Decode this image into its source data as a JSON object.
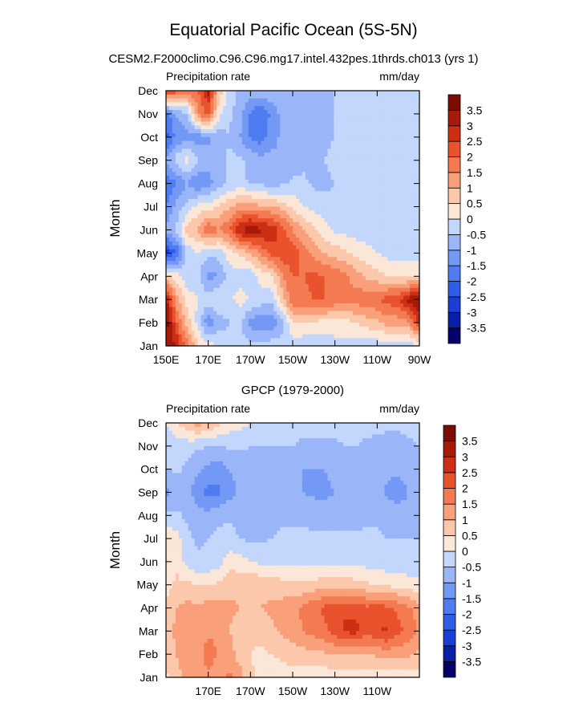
{
  "figure": {
    "title": "Equatorial Pacific Ocean (5S-5N)",
    "subtitle": "CESM2.F2000climo.C96.C96.mg17.intel.432pes.1thrds.ch013 (yrs 1)"
  },
  "colorbar": {
    "levels": [
      -3.5,
      -3,
      -2.5,
      -2,
      -1.5,
      -1,
      -0.5,
      0,
      0.5,
      1,
      1.5,
      2,
      2.5,
      3,
      3.5
    ],
    "level_labels": [
      "-3.5",
      "-3",
      "-2.5",
      "-2",
      "-1.5",
      "-1",
      "-0.5",
      "0",
      "0.5",
      "1",
      "1.5",
      "2",
      "2.5",
      "3",
      "3.5"
    ],
    "colors": [
      "#06006b",
      "#0a1fa8",
      "#1a3fd4",
      "#2f5de8",
      "#4f7cf0",
      "#7399f5",
      "#9ab6f8",
      "#c3d6fb",
      "#fbe7d8",
      "#fcc8ac",
      "#f9a07b",
      "#f47a52",
      "#e8532d",
      "#cc2f14",
      "#a51a08",
      "#7a0d03"
    ]
  },
  "chart_data": [
    {
      "type": "heatmap",
      "title": "",
      "left_label": "Precipitation rate",
      "right_label": "mm/day",
      "xlabel": "",
      "ylabel": "Month",
      "xlim": [
        150,
        270
      ],
      "x_ticks": [
        150,
        170,
        190,
        210,
        230,
        250,
        270
      ],
      "x_tick_labels": [
        "150E",
        "170E",
        "170W",
        "150W",
        "130W",
        "110W",
        "90W"
      ],
      "y_tick_labels": [
        "Jan",
        "Feb",
        "Mar",
        "Apr",
        "May",
        "Jun",
        "Jul",
        "Aug",
        "Sep",
        "Oct",
        "Nov",
        "Dec"
      ],
      "x": [
        150,
        155,
        160,
        165,
        170,
        175,
        180,
        185,
        190,
        195,
        200,
        205,
        210,
        215,
        220,
        225,
        230,
        235,
        240,
        245,
        250,
        255,
        260,
        265,
        270
      ],
      "values": [
        [
          3.4,
          3.0,
          1.8,
          0.6,
          0.2,
          0.0,
          -0.2,
          -0.3,
          -0.3,
          -0.3,
          -0.2,
          -0.2,
          -0.3,
          -0.3,
          -0.3,
          -0.3,
          -0.2,
          -0.2,
          -0.2,
          -0.3,
          -0.3,
          -0.3,
          -0.3,
          -0.3,
          0.0
        ],
        [
          3.8,
          2.0,
          0.8,
          -0.2,
          -1.4,
          -0.8,
          -0.5,
          -0.4,
          -1.2,
          -1.5,
          -1.3,
          -0.8,
          0.6,
          0.4,
          0.4,
          0.3,
          0.3,
          0.3,
          0.5,
          0.7,
          0.9,
          1.2,
          1.2,
          1.4,
          2.6
        ],
        [
          3.2,
          1.2,
          0.3,
          0.0,
          -0.2,
          0.0,
          -0.1,
          0.2,
          0.0,
          -0.2,
          -0.3,
          0.8,
          1.8,
          1.9,
          2.0,
          2.0,
          1.9,
          1.8,
          1.8,
          1.9,
          2.0,
          2.2,
          2.4,
          3.2,
          3.6
        ],
        [
          0.8,
          0.2,
          -0.3,
          -0.4,
          -1.2,
          -1.0,
          -0.3,
          -0.2,
          -0.4,
          0.2,
          0.4,
          1.4,
          2.0,
          2.0,
          2.1,
          2.0,
          1.9,
          1.6,
          1.2,
          0.9,
          0.7,
          0.5,
          0.4,
          0.3,
          0.3
        ],
        [
          -2.8,
          -2.0,
          -0.4,
          0.0,
          -0.4,
          -0.3,
          0.3,
          0.6,
          1.0,
          1.6,
          2.2,
          2.3,
          2.4,
          1.8,
          1.4,
          1.0,
          0.8,
          0.6,
          0.4,
          0.2,
          0.0,
          -0.2,
          -0.2,
          -0.2,
          -0.2
        ],
        [
          -0.8,
          -0.4,
          0.8,
          1.0,
          2.0,
          1.5,
          2.0,
          3.0,
          3.4,
          3.1,
          2.9,
          2.3,
          1.5,
          1.0,
          0.6,
          0.2,
          -0.1,
          -0.2,
          -0.3,
          -0.3,
          -0.3,
          -0.3,
          -0.3,
          -0.3,
          -0.3
        ],
        [
          -1.5,
          -0.8,
          -0.4,
          0.2,
          0.2,
          0.6,
          0.9,
          1.2,
          1.3,
          1.1,
          1.0,
          0.8,
          0.4,
          0.0,
          -0.2,
          -0.3,
          -0.4,
          -0.4,
          -0.4,
          -0.4,
          -0.4,
          -0.4,
          -0.4,
          -0.4,
          -0.4
        ],
        [
          -2.0,
          -1.5,
          -1.0,
          -1.5,
          -1.2,
          -0.8,
          -0.4,
          -0.3,
          -0.6,
          -0.6,
          -0.8,
          -0.6,
          -0.4,
          -0.4,
          -0.6,
          -0.6,
          -0.5,
          -0.5,
          -0.5,
          -0.5,
          -0.5,
          -0.5,
          -0.5,
          -0.5,
          -0.5
        ],
        [
          -1.0,
          -0.2,
          0.2,
          -0.5,
          -0.8,
          -0.8,
          -0.4,
          -0.4,
          -0.6,
          -0.8,
          -0.8,
          -1.0,
          -0.8,
          -0.6,
          -0.6,
          -0.5,
          -0.4,
          -0.4,
          -0.4,
          -0.4,
          -0.4,
          -0.4,
          -0.4,
          -0.4,
          -0.4
        ],
        [
          -2.2,
          -1.4,
          -1.2,
          -1.3,
          -1.1,
          -0.8,
          -0.5,
          -1.0,
          -1.6,
          -1.8,
          -1.2,
          -0.9,
          -0.7,
          -0.8,
          -0.7,
          -0.6,
          -0.5,
          -0.5,
          -0.5,
          -0.5,
          -0.5,
          -0.5,
          -0.5,
          -0.5,
          -0.5
        ],
        [
          -1.8,
          -0.9,
          -0.6,
          1.4,
          2.2,
          0.2,
          -0.4,
          -0.8,
          -1.6,
          -1.9,
          -1.4,
          -0.8,
          -0.5,
          -0.6,
          -0.8,
          -0.6,
          -0.5,
          -0.5,
          -0.5,
          -0.5,
          -0.5,
          -0.5,
          -0.5,
          -0.5,
          -0.5
        ],
        [
          2.6,
          2.2,
          1.8,
          2.0,
          2.9,
          0.9,
          -0.2,
          -0.6,
          -0.8,
          -0.7,
          -0.6,
          -0.6,
          -0.5,
          -0.6,
          -0.6,
          -0.5,
          -0.5,
          -0.5,
          -0.5,
          -0.5,
          -0.5,
          -0.5,
          -0.5,
          -0.5,
          -0.5
        ]
      ]
    },
    {
      "type": "heatmap",
      "title": "GPCP (1979-2000)",
      "left_label": "Precipitation rate",
      "right_label": "mm/day",
      "xlabel": "",
      "ylabel": "Month",
      "xlim": [
        150,
        270
      ],
      "x_ticks": [
        170,
        190,
        210,
        230,
        250
      ],
      "x_tick_labels": [
        "170E",
        "170W",
        "150W",
        "130W",
        "110W"
      ],
      "y_tick_labels": [
        "Jan",
        "Feb",
        "Mar",
        "Apr",
        "May",
        "Jun",
        "Jul",
        "Aug",
        "Sep",
        "Oct",
        "Nov",
        "Dec"
      ],
      "x": [
        150,
        155,
        160,
        165,
        170,
        175,
        180,
        185,
        190,
        195,
        200,
        205,
        210,
        215,
        220,
        225,
        230,
        235,
        240,
        245,
        250,
        255,
        260,
        265,
        270
      ],
      "values": [
        [
          0.4,
          0.8,
          1.2,
          1.3,
          1.4,
          1.2,
          1.6,
          1.2,
          0.6,
          0.3,
          0.3,
          0.3,
          0.3,
          0.2,
          0.2,
          0.2,
          0.2,
          0.2,
          0.2,
          0.2,
          0.2,
          0.2,
          0.2,
          0.2,
          0.2
        ],
        [
          0.6,
          1.0,
          1.4,
          1.2,
          1.8,
          1.4,
          1.2,
          0.8,
          0.5,
          0.4,
          0.5,
          0.6,
          0.7,
          0.8,
          0.9,
          0.9,
          1.0,
          1.0,
          1.0,
          1.0,
          1.1,
          1.2,
          1.2,
          1.1,
          0.9
        ],
        [
          0.6,
          1.2,
          1.3,
          1.1,
          1.4,
          1.4,
          1.0,
          0.7,
          0.6,
          0.7,
          0.9,
          1.1,
          1.3,
          1.5,
          1.7,
          1.9,
          2.2,
          2.6,
          2.7,
          2.2,
          2.5,
          2.6,
          2.1,
          1.9,
          1.4
        ],
        [
          0.6,
          1.0,
          1.2,
          1.1,
          1.2,
          1.2,
          1.1,
          1.0,
          0.9,
          1.0,
          1.1,
          1.2,
          1.4,
          1.6,
          1.9,
          2.1,
          2.2,
          2.4,
          2.3,
          2.1,
          2.2,
          2.1,
          1.9,
          1.6,
          1.2
        ],
        [
          0.3,
          0.6,
          0.6,
          0.5,
          0.5,
          0.6,
          0.8,
          0.9,
          0.9,
          0.9,
          0.8,
          0.7,
          0.6,
          0.6,
          0.7,
          0.8,
          0.8,
          0.8,
          0.7,
          0.6,
          0.5,
          0.4,
          0.3,
          0.2,
          0.1
        ],
        [
          0.2,
          0.4,
          -0.2,
          -0.4,
          -0.4,
          -0.2,
          0.3,
          0.2,
          0.0,
          -0.1,
          -0.1,
          -0.2,
          -0.2,
          -0.2,
          -0.2,
          -0.2,
          -0.2,
          -0.2,
          -0.2,
          -0.2,
          -0.3,
          -0.3,
          -0.3,
          -0.3,
          -0.3
        ],
        [
          0.3,
          0.2,
          -0.4,
          -0.6,
          -0.5,
          -0.4,
          -0.3,
          -0.5,
          -0.6,
          -0.6,
          -0.5,
          -0.4,
          -0.4,
          -0.4,
          -0.4,
          -0.4,
          -0.4,
          -0.4,
          -0.4,
          -0.4,
          -0.4,
          -0.5,
          -0.5,
          -0.5,
          -0.5
        ],
        [
          -0.3,
          -0.4,
          -0.6,
          -0.8,
          -0.8,
          -0.6,
          -0.6,
          -0.7,
          -0.8,
          -0.8,
          -0.7,
          -0.6,
          -0.6,
          -0.6,
          -0.7,
          -0.8,
          -0.8,
          -0.8,
          -0.7,
          -0.6,
          -0.6,
          -0.7,
          -0.8,
          -0.8,
          -0.7
        ],
        [
          -1.2,
          -0.8,
          -0.7,
          -1.4,
          -1.7,
          -1.6,
          -1.2,
          -0.9,
          -0.9,
          -0.8,
          -0.8,
          -0.8,
          -0.9,
          -1.0,
          -1.1,
          -1.1,
          -1.0,
          -1.0,
          -0.9,
          -0.8,
          -0.9,
          -1.1,
          -1.2,
          -1.0,
          -0.8
        ],
        [
          -0.5,
          -0.4,
          -0.6,
          -0.9,
          -1.1,
          -1.3,
          -1.0,
          -0.8,
          -0.9,
          -0.9,
          -0.8,
          -0.8,
          -0.9,
          -1.0,
          -1.0,
          -1.0,
          -0.9,
          -0.8,
          -0.7,
          -0.7,
          -0.8,
          -0.9,
          -0.9,
          -0.8,
          -0.6
        ],
        [
          -0.3,
          -0.2,
          -0.3,
          -0.4,
          -0.5,
          -0.5,
          -0.4,
          -0.4,
          -0.5,
          -0.5,
          -0.5,
          -0.5,
          -0.5,
          -0.6,
          -0.6,
          -0.6,
          -0.6,
          -0.5,
          -0.5,
          -0.6,
          -0.7,
          -0.8,
          -0.8,
          -0.6,
          -0.5
        ],
        [
          0.0,
          0.4,
          0.9,
          1.2,
          1.0,
          0.6,
          0.3,
          0.2,
          0.0,
          -0.2,
          -0.3,
          -0.3,
          -0.3,
          -0.3,
          -0.3,
          -0.3,
          -0.3,
          -0.3,
          -0.3,
          -0.3,
          -0.3,
          -0.3,
          -0.3,
          -0.3,
          -0.3
        ]
      ]
    }
  ]
}
